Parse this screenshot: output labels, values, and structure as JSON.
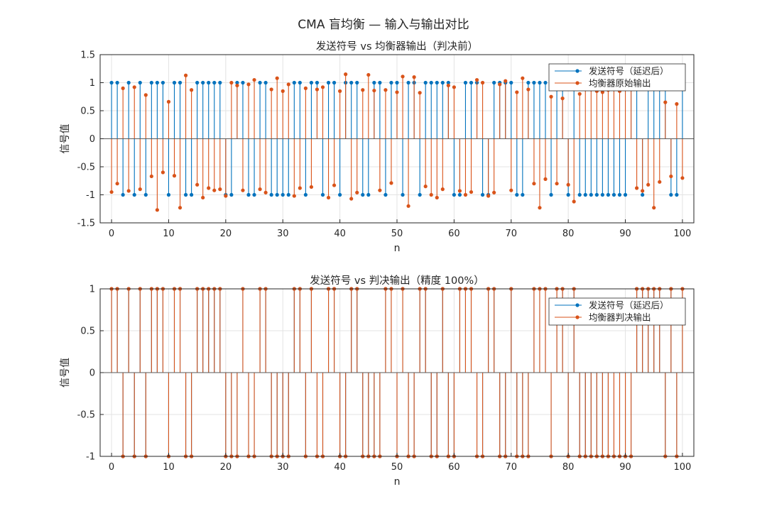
{
  "figure": {
    "suptitle": "CMA 盲均衡 — 输入与输出对比"
  },
  "chart_data": [
    {
      "type": "stem",
      "title": "发送符号 vs 均衡器输出（判决前）",
      "xlabel": "n",
      "ylabel": "信号值",
      "xlim": [
        -2,
        102
      ],
      "ylim": [
        -1.5,
        1.5
      ],
      "xticks": [
        0,
        10,
        20,
        30,
        40,
        50,
        60,
        70,
        80,
        90,
        100
      ],
      "yticks": [
        -1.5,
        -1,
        -0.5,
        0,
        0.5,
        1,
        1.5
      ],
      "ytick_labels": [
        "-1.5",
        "-1",
        "-0.5",
        "0",
        "0.5",
        "1",
        "1.5"
      ],
      "grid": true,
      "legend_position": "top-right",
      "series": [
        {
          "name": "发送符号（延迟后）",
          "color": "#0072BD",
          "x": [
            0,
            1,
            2,
            3,
            4,
            5,
            6,
            7,
            8,
            9,
            10,
            11,
            12,
            13,
            14,
            15,
            16,
            17,
            18,
            19,
            20,
            21,
            22,
            23,
            24,
            25,
            26,
            27,
            28,
            29,
            30,
            31,
            32,
            33,
            34,
            35,
            36,
            37,
            38,
            39,
            40,
            41,
            42,
            43,
            44,
            45,
            46,
            47,
            48,
            49,
            50,
            51,
            52,
            53,
            54,
            55,
            56,
            57,
            58,
            59,
            60,
            61,
            62,
            63,
            64,
            65,
            66,
            67,
            68,
            69,
            70,
            71,
            72,
            73,
            74,
            75,
            76,
            77,
            78,
            79,
            80,
            81,
            82,
            83,
            84,
            85,
            86,
            87,
            88,
            89,
            90,
            91,
            92,
            93,
            94,
            95,
            96,
            97,
            98,
            99,
            100
          ],
          "values": [
            1,
            1,
            -1,
            1,
            -1,
            1,
            -1,
            1,
            1,
            1,
            -1,
            1,
            1,
            -1,
            -1,
            1,
            1,
            1,
            1,
            1,
            -1,
            -1,
            1,
            1,
            -1,
            -1,
            1,
            1,
            -1,
            -1,
            -1,
            -1,
            1,
            1,
            -1,
            1,
            1,
            -1,
            1,
            1,
            -1,
            1,
            1,
            1,
            -1,
            -1,
            1,
            1,
            -1,
            1,
            1,
            -1,
            1,
            1,
            -1,
            1,
            1,
            1,
            1,
            1,
            -1,
            -1,
            1,
            1,
            1,
            -1,
            -1,
            1,
            1,
            1,
            1,
            -1,
            -1,
            1,
            1,
            1,
            1,
            -1,
            1,
            1,
            -1,
            1,
            -1,
            -1,
            -1,
            -1,
            -1,
            -1,
            -1,
            -1,
            -1,
            1,
            1,
            -1,
            1,
            1,
            1,
            1,
            -1,
            -1,
            1
          ]
        },
        {
          "name": "均衡器原始输出",
          "color": "#D95319",
          "x": [
            0,
            1,
            2,
            3,
            4,
            5,
            6,
            7,
            8,
            9,
            10,
            11,
            12,
            13,
            14,
            15,
            16,
            17,
            18,
            19,
            20,
            21,
            22,
            23,
            24,
            25,
            26,
            27,
            28,
            29,
            30,
            31,
            32,
            33,
            34,
            35,
            36,
            37,
            38,
            39,
            40,
            41,
            42,
            43,
            44,
            45,
            46,
            47,
            48,
            49,
            50,
            51,
            52,
            53,
            54,
            55,
            56,
            57,
            58,
            59,
            60,
            61,
            62,
            63,
            64,
            65,
            66,
            67,
            68,
            69,
            70,
            71,
            72,
            73,
            74,
            75,
            76,
            77,
            78,
            79,
            80,
            81,
            82,
            83,
            84,
            85,
            86,
            87,
            88,
            89,
            90,
            91,
            92,
            93,
            94,
            95,
            96,
            97,
            98,
            99,
            100
          ],
          "values": [
            -0.95,
            -0.8,
            0.9,
            -0.93,
            0.92,
            -0.9,
            0.78,
            -0.67,
            -1.27,
            -0.6,
            0.66,
            -0.66,
            -1.23,
            1.13,
            0.87,
            -0.82,
            -1.05,
            -0.88,
            -0.92,
            -0.9,
            -1.02,
            1.0,
            0.95,
            -0.92,
            0.97,
            1.05,
            -0.9,
            -0.96,
            0.88,
            1.08,
            0.85,
            0.97,
            -1.02,
            -0.88,
            0.9,
            -0.86,
            0.88,
            0.92,
            -1.05,
            -0.83,
            0.85,
            1.15,
            -1.07,
            -0.96,
            0.87,
            1.14,
            0.86,
            -0.92,
            0.87,
            -0.79,
            0.83,
            1.11,
            -1.2,
            1.1,
            0.82,
            -0.85,
            -1.0,
            -1.05,
            -0.9,
            0.95,
            0.92,
            -0.93,
            -1.0,
            -0.95,
            1.05,
            1.0,
            -1.02,
            -0.96,
            0.97,
            1.03,
            -0.92,
            0.83,
            1.08,
            0.88,
            -0.8,
            -1.23,
            -0.72,
            0.75,
            -0.8,
            0.72,
            -0.82,
            -1.12,
            0.8,
            0.9,
            0.88,
            0.85,
            0.83,
            0.87,
            0.9,
            0.85,
            0.93,
            0.92,
            -0.88,
            -0.93,
            -0.82,
            -1.23,
            -0.77,
            0.65,
            -0.67,
            0.62,
            -0.7
          ]
        }
      ]
    },
    {
      "type": "stem",
      "title": "发送符号 vs 判决输出（精度 100%）",
      "xlabel": "n",
      "ylabel": "信号值",
      "xlim": [
        -2,
        102
      ],
      "ylim": [
        -1,
        1
      ],
      "xticks": [
        0,
        10,
        20,
        30,
        40,
        50,
        60,
        70,
        80,
        90,
        100
      ],
      "yticks": [
        -1,
        -0.5,
        0,
        0.5,
        1
      ],
      "ytick_labels": [
        "-1",
        "-0.5",
        "0",
        "0.5",
        "1"
      ],
      "grid": true,
      "legend_position": "top-right",
      "series": [
        {
          "name": "发送符号（延迟后）",
          "color": "#0072BD",
          "x": [
            0,
            1,
            2,
            3,
            4,
            5,
            6,
            7,
            8,
            9,
            10,
            11,
            12,
            13,
            14,
            15,
            16,
            17,
            18,
            19,
            20,
            21,
            22,
            23,
            24,
            25,
            26,
            27,
            28,
            29,
            30,
            31,
            32,
            33,
            34,
            35,
            36,
            37,
            38,
            39,
            40,
            41,
            42,
            43,
            44,
            45,
            46,
            47,
            48,
            49,
            50,
            51,
            52,
            53,
            54,
            55,
            56,
            57,
            58,
            59,
            60,
            61,
            62,
            63,
            64,
            65,
            66,
            67,
            68,
            69,
            70,
            71,
            72,
            73,
            74,
            75,
            76,
            77,
            78,
            79,
            80,
            81,
            82,
            83,
            84,
            85,
            86,
            87,
            88,
            89,
            90,
            91,
            92,
            93,
            94,
            95,
            96,
            97,
            98,
            99,
            100
          ],
          "values": [
            1,
            1,
            -1,
            1,
            -1,
            1,
            -1,
            1,
            1,
            1,
            -1,
            1,
            1,
            -1,
            -1,
            1,
            1,
            1,
            1,
            1,
            -1,
            -1,
            -1,
            1,
            -1,
            -1,
            1,
            1,
            -1,
            -1,
            -1,
            -1,
            1,
            1,
            -1,
            1,
            -1,
            -1,
            1,
            1,
            -1,
            -1,
            1,
            1,
            -1,
            -1,
            -1,
            -1,
            1,
            1,
            -1,
            1,
            -1,
            -1,
            1,
            1,
            -1,
            -1,
            1,
            -1,
            -1,
            1,
            1,
            1,
            -1,
            -1,
            1,
            1,
            -1,
            -1,
            1,
            -1,
            -1,
            -1,
            1,
            1,
            1,
            -1,
            1,
            1,
            -1,
            1,
            -1,
            -1,
            -1,
            -1,
            -1,
            -1,
            -1,
            -1,
            -1,
            -1,
            1,
            1,
            1,
            1,
            1,
            -1,
            1,
            -1,
            1
          ]
        },
        {
          "name": "均衡器判决输出",
          "color": "#D95319",
          "x": [
            0,
            1,
            2,
            3,
            4,
            5,
            6,
            7,
            8,
            9,
            10,
            11,
            12,
            13,
            14,
            15,
            16,
            17,
            18,
            19,
            20,
            21,
            22,
            23,
            24,
            25,
            26,
            27,
            28,
            29,
            30,
            31,
            32,
            33,
            34,
            35,
            36,
            37,
            38,
            39,
            40,
            41,
            42,
            43,
            44,
            45,
            46,
            47,
            48,
            49,
            50,
            51,
            52,
            53,
            54,
            55,
            56,
            57,
            58,
            59,
            60,
            61,
            62,
            63,
            64,
            65,
            66,
            67,
            68,
            69,
            70,
            71,
            72,
            73,
            74,
            75,
            76,
            77,
            78,
            79,
            80,
            81,
            82,
            83,
            84,
            85,
            86,
            87,
            88,
            89,
            90,
            91,
            92,
            93,
            94,
            95,
            96,
            97,
            98,
            99,
            100
          ],
          "values": [
            1,
            1,
            -1,
            1,
            -1,
            1,
            -1,
            1,
            1,
            1,
            -1,
            1,
            1,
            -1,
            -1,
            1,
            1,
            1,
            1,
            1,
            -1,
            -1,
            -1,
            1,
            -1,
            -1,
            1,
            1,
            -1,
            -1,
            -1,
            -1,
            1,
            1,
            -1,
            1,
            -1,
            -1,
            1,
            1,
            -1,
            -1,
            1,
            1,
            -1,
            -1,
            -1,
            -1,
            1,
            1,
            -1,
            1,
            -1,
            -1,
            1,
            1,
            -1,
            -1,
            1,
            -1,
            -1,
            1,
            1,
            1,
            -1,
            -1,
            1,
            1,
            -1,
            -1,
            1,
            -1,
            -1,
            -1,
            1,
            1,
            1,
            -1,
            1,
            1,
            -1,
            1,
            -1,
            -1,
            -1,
            -1,
            -1,
            -1,
            -1,
            -1,
            -1,
            -1,
            1,
            1,
            1,
            1,
            1,
            -1,
            1,
            -1,
            1
          ]
        }
      ]
    }
  ]
}
